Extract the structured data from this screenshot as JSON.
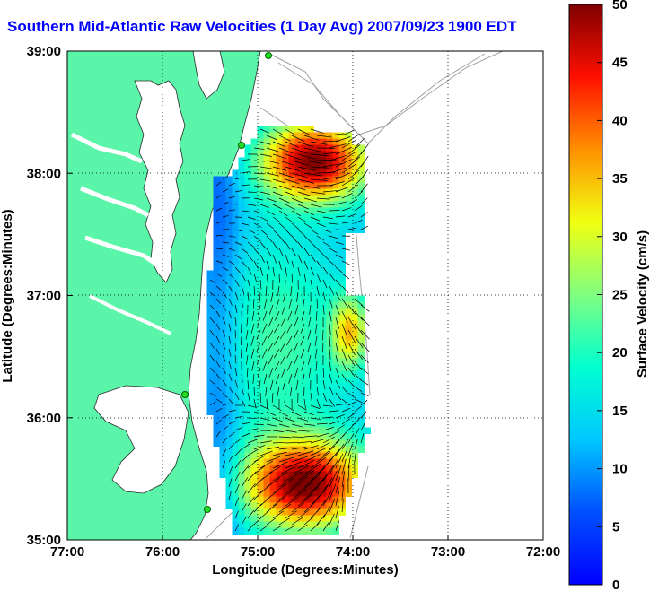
{
  "title": "Southern Mid-Atlantic Raw Velocities (1 Day Avg) 2007/09/23 1900 EDT",
  "x_axis": {
    "label": "Longitude (Degrees:Minutes)",
    "ticks": [
      "77:00",
      "76:00",
      "75:00",
      "74:00",
      "73:00",
      "72:00"
    ]
  },
  "y_axis": {
    "label": "Latitude (Degrees:Minutes)",
    "ticks": [
      "39:00",
      "38:00",
      "37:00",
      "36:00",
      "35:00"
    ]
  },
  "colorbar": {
    "label": "Surface Velocity (cm/s)",
    "ticks": [
      "0",
      "5",
      "10",
      "15",
      "20",
      "25",
      "30",
      "35",
      "40",
      "45",
      "50"
    ],
    "range": [
      0,
      50
    ],
    "colormap": "jet"
  },
  "colors": {
    "land": "#5af5a8",
    "water": "#ffffff",
    "title": "#0000ff",
    "bathymetry": "#a0a0a0"
  },
  "map_extent": {
    "lon_range": [
      "77:00",
      "72:00"
    ],
    "lat_range": [
      "35:00",
      "39:00"
    ]
  }
}
